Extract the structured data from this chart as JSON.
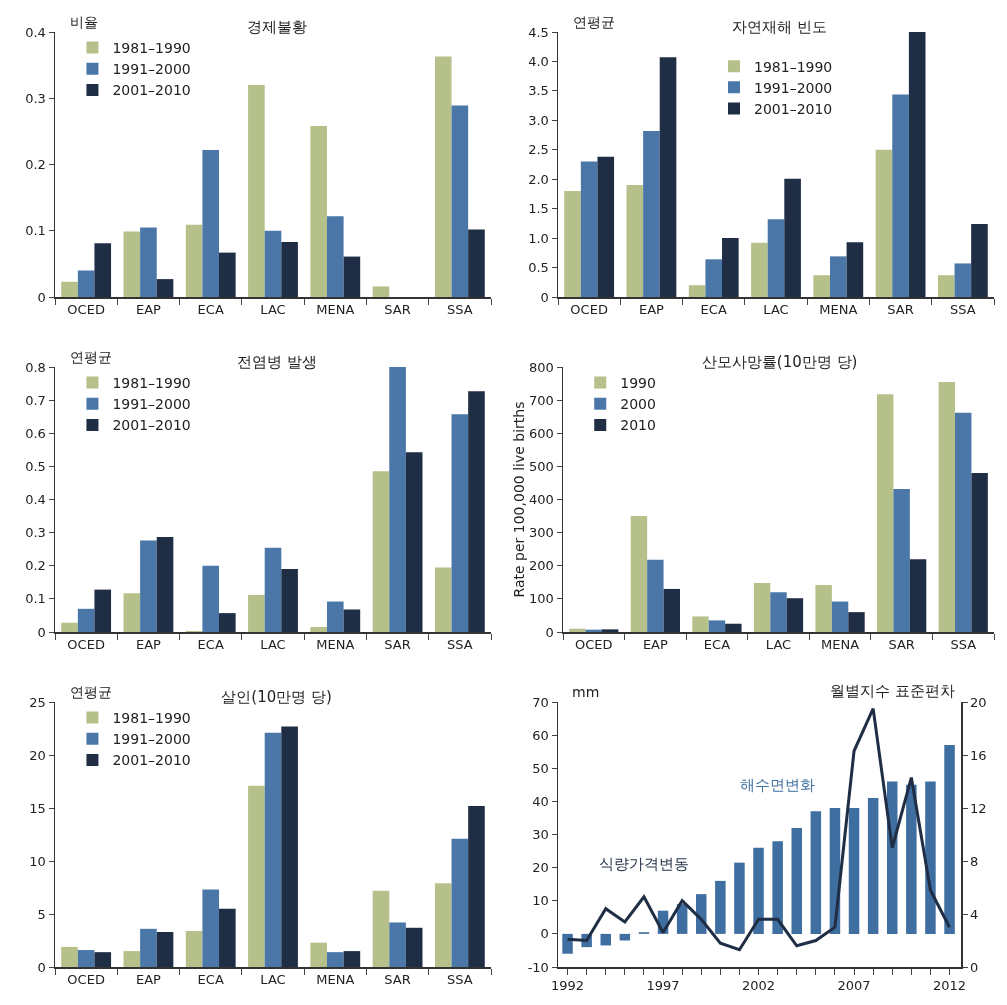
{
  "chart_data": [
    {
      "type": "bar",
      "title": "경제불황",
      "ylabel": "비율",
      "categories": [
        "OCED",
        "EAP",
        "ECA",
        "LAC",
        "MENA",
        "SAR",
        "SSA"
      ],
      "ylim": [
        0,
        0.4
      ],
      "yticks": [
        0,
        0.1,
        0.2,
        0.3,
        0.4
      ],
      "legend": "top left",
      "series": [
        {
          "name": "1981–1990",
          "color": "#b5c08a",
          "values": [
            0.023,
            0.099,
            0.109,
            0.32,
            0.258,
            0.016,
            0.363
          ]
        },
        {
          "name": "1991–2000",
          "color": "#4a77a8",
          "values": [
            0.04,
            0.105,
            0.222,
            0.1,
            0.122,
            0,
            0.289
          ]
        },
        {
          "name": "2001–2010",
          "color": "#1f2d45",
          "values": [
            0.081,
            0.027,
            0.067,
            0.083,
            0.061,
            0,
            0.102
          ]
        }
      ]
    },
    {
      "type": "bar",
      "title": "자연재해 빈도",
      "ylabel": "연평균",
      "categories": [
        "OCED",
        "EAP",
        "ECA",
        "LAC",
        "MENA",
        "SAR",
        "SSA"
      ],
      "ylim": [
        0,
        4.5
      ],
      "yticks": [
        0,
        0.5,
        {
          "value": 1,
          "label": "1.0"
        },
        1.5,
        {
          "value": 2,
          "label": "2.0"
        },
        2.5,
        {
          "value": 3,
          "label": "3.0"
        },
        3.5,
        {
          "value": 4,
          "label": "4.0"
        },
        4.5
      ],
      "legend": "top",
      "series": [
        {
          "name": "1981–1990",
          "color": "#b5c08a",
          "values": [
            1.8,
            1.9,
            0.2,
            0.92,
            0.37,
            2.5,
            0.37
          ]
        },
        {
          "name": "1991–2000",
          "color": "#4a77a8",
          "values": [
            2.3,
            2.82,
            0.64,
            1.32,
            0.69,
            3.44,
            0.57
          ]
        },
        {
          "name": "2001–2010",
          "color": "#1f2d45",
          "values": [
            2.38,
            4.07,
            1.0,
            2.01,
            0.93,
            4.5,
            1.24
          ]
        }
      ]
    },
    {
      "type": "bar",
      "title": "전염병 발생",
      "ylabel": "연평균",
      "categories": [
        "OCED",
        "EAP",
        "ECA",
        "LAC",
        "MENA",
        "SAR",
        "SSA"
      ],
      "ylim": [
        0,
        0.8
      ],
      "yticks": [
        0,
        0.1,
        0.2,
        0.3,
        0.4,
        0.5,
        0.6,
        0.7,
        0.8
      ],
      "legend": "top left",
      "series": [
        {
          "name": "1981–1990",
          "color": "#b5c08a",
          "values": [
            0.028,
            0.117,
            0.003,
            0.112,
            0.015,
            0.485,
            0.195
          ]
        },
        {
          "name": "1991–2000",
          "color": "#4a77a8",
          "values": [
            0.07,
            0.276,
            0.2,
            0.254,
            0.092,
            0.8,
            0.657
          ]
        },
        {
          "name": "2001–2010",
          "color": "#1f2d45",
          "values": [
            0.128,
            0.287,
            0.057,
            0.19,
            0.068,
            0.543,
            0.727
          ]
        }
      ]
    },
    {
      "type": "bar",
      "title": "산모사망률(10만명 당)",
      "ylabel": "Rate per 100,000 live births",
      "categories": [
        "OCED",
        "EAP",
        "ECA",
        "LAC",
        "MENA",
        "SAR",
        "SSA"
      ],
      "ylim": [
        0,
        800
      ],
      "yticks": [
        0,
        100,
        200,
        300,
        400,
        500,
        600,
        700,
        800
      ],
      "legend": "top left",
      "series": [
        {
          "name": "1990",
          "color": "#b5c08a",
          "values": [
            10,
            350,
            47,
            148,
            142,
            718,
            755
          ]
        },
        {
          "name": "2000",
          "color": "#4a77a8",
          "values": [
            7,
            218,
            35,
            120,
            92,
            432,
            662
          ]
        },
        {
          "name": "2010",
          "color": "#1f2d45",
          "values": [
            8,
            130,
            25,
            102,
            60,
            220,
            480
          ]
        }
      ]
    },
    {
      "type": "bar",
      "title": "살인(10만명 당)",
      "ylabel": "연평균",
      "categories": [
        "OCED",
        "EAP",
        "ECA",
        "LAC",
        "MENA",
        "SAR",
        "SSA"
      ],
      "ylim": [
        0,
        25
      ],
      "yticks": [
        0,
        5,
        10,
        15,
        20,
        25
      ],
      "legend": "top left",
      "series": [
        {
          "name": "1981–1990",
          "color": "#b5c08a",
          "values": [
            1.9,
            1.5,
            3.4,
            17.1,
            2.3,
            7.2,
            7.9
          ]
        },
        {
          "name": "1991–2000",
          "color": "#4a77a8",
          "values": [
            1.6,
            3.6,
            7.3,
            22.1,
            1.4,
            4.2,
            12.1
          ]
        },
        {
          "name": "2001–2010",
          "color": "#1f2d45",
          "values": [
            1.4,
            3.3,
            5.5,
            22.7,
            1.5,
            3.7,
            15.2
          ]
        }
      ]
    },
    {
      "type": "bar",
      "ylabel": "mm",
      "y2label": "월별지수 표준편차",
      "x": [
        1992,
        1993,
        1994,
        1995,
        1996,
        1997,
        1998,
        1999,
        2000,
        2001,
        2002,
        2003,
        2004,
        2005,
        2006,
        2007,
        2008,
        2009,
        2010,
        2011,
        2012
      ],
      "xlim": [
        1991.5,
        2012.6
      ],
      "xticks": [
        1992,
        {
          "value": 1993,
          "label": null
        },
        {
          "value": 1994,
          "label": null
        },
        {
          "value": 1995,
          "label": null
        },
        {
          "value": 1996,
          "label": null
        },
        1997,
        {
          "value": 1998,
          "label": null
        },
        {
          "value": 1999,
          "label": null
        },
        {
          "value": 2000,
          "label": null
        },
        {
          "value": 2001,
          "label": null
        },
        2002,
        {
          "value": 2003,
          "label": null
        },
        {
          "value": 2004,
          "label": null
        },
        {
          "value": 2005,
          "label": null
        },
        {
          "value": 2006,
          "label": null
        },
        2007,
        {
          "value": 2008,
          "label": null
        },
        {
          "value": 2009,
          "label": null
        },
        {
          "value": 2010,
          "label": null
        },
        {
          "value": 2011,
          "label": null
        },
        2012
      ],
      "ylim": [
        -10,
        70
      ],
      "yticks": [
        -10,
        0,
        10,
        20,
        30,
        40,
        50,
        60,
        70
      ],
      "y2lim": [
        0,
        20
      ],
      "y2ticks": [
        0,
        4,
        8,
        12,
        16,
        20
      ],
      "legend": false,
      "series": [
        {
          "name": "해수면변화",
          "color": "#3f6fa0",
          "values": [
            -6,
            -4,
            -3.5,
            -2,
            0.5,
            7,
            9,
            12,
            16,
            21.5,
            26,
            28,
            32,
            37,
            38,
            38,
            41,
            46,
            45,
            46,
            57
          ]
        },
        {
          "name": "식량가격변동",
          "type": "line",
          "axis": "y2",
          "color": "#1f2d45",
          "values": [
            2.1,
            2.0,
            4.4,
            3.4,
            5.3,
            2.6,
            5.0,
            3.6,
            1.8,
            1.3,
            3.6,
            3.6,
            1.6,
            2.0,
            3.0,
            16.3,
            19.5,
            9.0,
            14.3,
            5.8,
            3.0
          ]
        }
      ]
    }
  ]
}
